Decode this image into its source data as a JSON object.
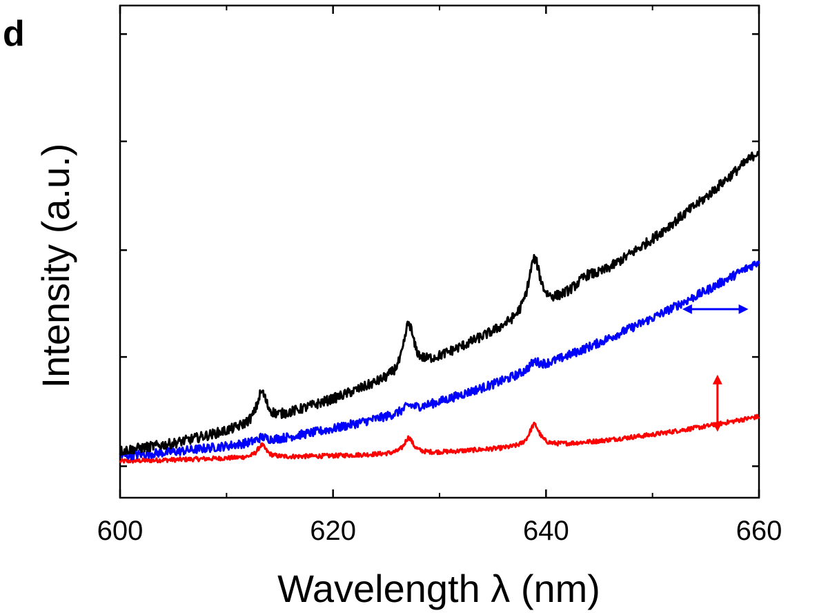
{
  "panel_label": "d",
  "chart_data": {
    "type": "line",
    "xlabel": "Wavelength λ (nm)",
    "ylabel": "Intensity (a.u.)",
    "xlim": [
      600,
      660
    ],
    "ylim": [
      0,
      100
    ],
    "x_ticks": [
      600,
      620,
      640,
      660
    ],
    "x_tick_labels": [
      "600",
      "620",
      "640",
      "660"
    ],
    "y_ticks": [
      6.4,
      28.6,
      50.3,
      72.4,
      94.2
    ],
    "y_tick_labels": [],
    "grid": false,
    "legend": "none",
    "series": [
      {
        "color": "#000000",
        "baseline": [
          [
            600,
            9.5
          ],
          [
            605,
            11
          ],
          [
            610,
            13.5
          ],
          [
            615,
            16.5
          ],
          [
            620,
            20
          ],
          [
            625,
            24
          ],
          [
            630,
            28.5
          ],
          [
            635,
            33.5
          ],
          [
            640,
            38.5
          ],
          [
            645,
            45
          ],
          [
            650,
            52.5
          ],
          [
            655,
            61
          ],
          [
            660,
            70.5
          ]
        ],
        "peaks": [
          [
            613.3,
            6,
            0.55
          ],
          [
            627.1,
            9.5,
            0.55
          ],
          [
            638.9,
            11,
            0.7
          ],
          [
            643.8,
            1.5,
            1.0
          ]
        ],
        "noise": 1.0
      },
      {
        "color": "#0000ff",
        "baseline": [
          [
            600,
            8.5
          ],
          [
            605,
            9.3
          ],
          [
            610,
            10.5
          ],
          [
            615,
            12
          ],
          [
            620,
            14
          ],
          [
            625,
            16.5
          ],
          [
            630,
            19.5
          ],
          [
            635,
            23
          ],
          [
            640,
            27
          ],
          [
            645,
            31.5
          ],
          [
            650,
            36.5
          ],
          [
            655,
            42
          ],
          [
            660,
            48
          ]
        ],
        "peaks": [
          [
            613.3,
            0.8,
            0.5
          ],
          [
            627.1,
            1.0,
            0.5
          ],
          [
            638.9,
            1.5,
            0.6
          ]
        ],
        "noise": 0.9
      },
      {
        "color": "#ff0000",
        "baseline": [
          [
            600,
            7.4
          ],
          [
            610,
            8.0
          ],
          [
            620,
            8.5
          ],
          [
            630,
            9.2
          ],
          [
            640,
            10.5
          ],
          [
            645,
            11.5
          ],
          [
            650,
            12.8
          ],
          [
            655,
            14.5
          ],
          [
            660,
            16.5
          ]
        ],
        "peaks": [
          [
            613.3,
            2.5,
            0.5
          ],
          [
            627.1,
            3.2,
            0.5
          ],
          [
            638.9,
            4.5,
            0.6
          ]
        ],
        "noise": 0.45
      }
    ],
    "annotations": [
      {
        "type": "double-arrow-horizontal",
        "color": "#0000ff",
        "x1": 652.8,
        "x2": 659,
        "y": 38.3
      },
      {
        "type": "double-arrow-vertical",
        "color": "#ff0000",
        "x": 656.1,
        "y1": 13.4,
        "y2": 25
      }
    ]
  }
}
